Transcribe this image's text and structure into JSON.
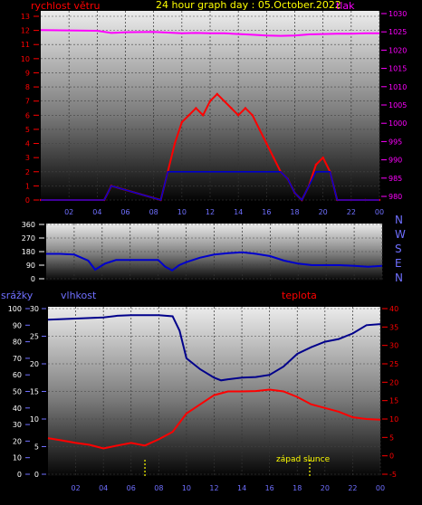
{
  "colors": {
    "wind": "#ff0000",
    "pressure": "#ff00ff",
    "direction": "#0000cc",
    "humidity": "#00008b",
    "temperature": "#ff0000",
    "title": "#ffff00",
    "sunset": "#ffff00",
    "axis_text_white": "#ffffff",
    "axis_text_blue": "#6f6fff",
    "bg_top": "#e8e8e8",
    "bg_bottom": "#000000"
  },
  "top": {
    "title": "24 hour graph day : 05.October.2022",
    "left_label": "rychlost větru",
    "right_label": "tlak",
    "y_left_ticks": [
      "0",
      "1",
      "2",
      "3",
      "4",
      "5",
      "6",
      "7",
      "8",
      "9",
      "10",
      "11",
      "12",
      "13"
    ],
    "y_right_ticks": [
      "980",
      "985",
      "990",
      "995",
      "1000",
      "1005",
      "1010",
      "1015",
      "1020",
      "1025",
      "1030"
    ],
    "x_ticks": [
      "02",
      "04",
      "06",
      "08",
      "10",
      "12",
      "14",
      "16",
      "18",
      "20",
      "22",
      "00"
    ]
  },
  "middle": {
    "y_ticks": [
      "0",
      "90",
      "180",
      "270",
      "360"
    ],
    "compass": [
      "N",
      "W",
      "S",
      "E",
      "N"
    ]
  },
  "bottom": {
    "left_label": "srážky",
    "mid_label": "vlhkost",
    "right_label": "teplota",
    "precip_ticks": [
      "0",
      "10",
      "20",
      "30",
      "40",
      "50",
      "60",
      "70",
      "80",
      "90",
      "100"
    ],
    "humidity_ticks": [
      "0",
      "5",
      "10",
      "15",
      "20",
      "25",
      "30"
    ],
    "temp_ticks": [
      "-5",
      "0",
      "5",
      "10",
      "15",
      "20",
      "25",
      "30",
      "35",
      "40"
    ],
    "x_ticks": [
      "02",
      "04",
      "06",
      "08",
      "10",
      "12",
      "14",
      "16",
      "18",
      "20",
      "22",
      "00"
    ],
    "sunset_label": "západ slunce"
  },
  "chart_data": [
    {
      "type": "line",
      "title": "24 hour graph day : 05.October.2022",
      "x_unit": "hour",
      "xlim": [
        0,
        24
      ],
      "series": [
        {
          "name": "rychlost větru",
          "axis": "left",
          "ylim": [
            0,
            13
          ],
          "x": [
            0,
            4.5,
            5,
            8.5,
            9,
            9.5,
            10,
            10.5,
            11,
            11.5,
            12,
            12.5,
            13,
            13.5,
            14,
            14.5,
            15,
            15.5,
            16,
            16.5,
            17,
            17.5,
            18,
            18.5,
            19,
            19.5,
            20,
            20.5,
            21,
            22,
            23,
            24
          ],
          "y": [
            0,
            0,
            1,
            0,
            2,
            4,
            5.5,
            6,
            6.5,
            6,
            7,
            7.5,
            7,
            6.5,
            6,
            6.5,
            6,
            5,
            4,
            3,
            2,
            1.5,
            0.5,
            0,
            1,
            2.5,
            3,
            2,
            0,
            0,
            0,
            0
          ]
        },
        {
          "name": "tlak",
          "axis": "right",
          "ylim": [
            980,
            1030
          ],
          "x": [
            0,
            2,
            4,
            5,
            6,
            8,
            9,
            10,
            11,
            12,
            13,
            14,
            15,
            16,
            17,
            18,
            19,
            20,
            21,
            22,
            23,
            24
          ],
          "y": [
            1025.5,
            1025.4,
            1025.3,
            1024.7,
            1024.9,
            1025.0,
            1024.8,
            1024.6,
            1024.7,
            1024.6,
            1024.6,
            1024.4,
            1024.2,
            1024.0,
            1023.9,
            1024.0,
            1024.3,
            1024.4,
            1024.5,
            1024.5,
            1024.6,
            1024.6
          ]
        }
      ]
    },
    {
      "type": "line",
      "x_unit": "hour",
      "xlim": [
        0,
        24
      ],
      "ylim": [
        0,
        360
      ],
      "series": [
        {
          "name": "",
          "x": [
            0,
            1,
            2,
            3,
            3.5,
            4.2,
            5,
            6,
            7,
            8,
            8.5,
            9,
            9.5,
            10,
            11,
            12,
            13,
            14,
            15,
            16,
            17,
            18,
            19,
            20,
            21,
            22,
            23,
            24
          ],
          "y": [
            165,
            165,
            160,
            120,
            60,
            100,
            125,
            125,
            125,
            125,
            80,
            55,
            90,
            110,
            140,
            160,
            170,
            175,
            165,
            150,
            120,
            100,
            90,
            90,
            90,
            85,
            80,
            85
          ]
        }
      ]
    },
    {
      "type": "line",
      "x_unit": "hour",
      "xlim": [
        0,
        24
      ],
      "series": [
        {
          "name": "vlhkost",
          "axis": "humidity",
          "ylim": [
            0,
            30
          ],
          "x": [
            0,
            2,
            4,
            5,
            6,
            7,
            8,
            9,
            9.5,
            10,
            11,
            12,
            12.5,
            13,
            14,
            15,
            16,
            17,
            18,
            19,
            20,
            21,
            22,
            23,
            24
          ],
          "y": [
            28,
            28.2,
            28.4,
            28.7,
            28.8,
            28.8,
            28.8,
            28.6,
            26,
            21,
            19,
            17.5,
            17,
            17.2,
            17.5,
            17.6,
            18,
            19.5,
            21.8,
            23,
            24,
            24.5,
            25.5,
            27,
            27.2
          ]
        },
        {
          "name": "teplota",
          "axis": "temperature",
          "ylim": [
            -5,
            40
          ],
          "x": [
            0,
            1,
            2,
            3,
            4,
            5,
            6,
            7,
            8,
            9,
            10,
            11,
            12,
            13,
            14,
            15,
            16,
            17,
            18,
            19,
            20,
            21,
            22,
            23,
            24
          ],
          "y": [
            4.8,
            4.2,
            3.5,
            3.0,
            2.0,
            2.8,
            3.5,
            2.8,
            4.5,
            6.5,
            11.5,
            14,
            16.5,
            17.5,
            17.5,
            17.6,
            18,
            17.5,
            16,
            14,
            13,
            12,
            10.5,
            10,
            9.8
          ]
        }
      ],
      "annotations": [
        {
          "text": "západ slunce",
          "x": 18.9
        }
      ]
    }
  ]
}
